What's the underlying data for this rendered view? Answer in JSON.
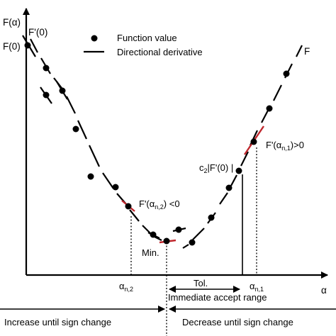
{
  "axes": {
    "y_label": "F(α)",
    "x_label": "α",
    "origin_label": "F(0)",
    "origin_slope_label": "F'(0)"
  },
  "legend": {
    "function_value": "Function value",
    "directional_derivative": "Directional derivative"
  },
  "curve_label": "F",
  "annotations": {
    "slope_right": {
      "text": "F'(α",
      "sub": "n,1",
      "tail": ")>0"
    },
    "slope_left": {
      "text": "F'(α",
      "sub": "n,2",
      "tail": ") <0"
    },
    "c2": {
      "pre": "c",
      "sub": "2",
      "rest": "|F'(0) |"
    },
    "min": "Min.",
    "tol": "Tol.",
    "immediate_accept": "Immediate accept range",
    "alpha_n2": {
      "text": "α",
      "sub": "n,2"
    },
    "alpha_n1": {
      "text": "α",
      "sub": "n,1"
    }
  },
  "bottom": {
    "left": "Increase until sign change",
    "right": "Decrease until sign change"
  },
  "colors": {
    "line": "#000000",
    "highlight_derivative": "#c0272d"
  }
}
